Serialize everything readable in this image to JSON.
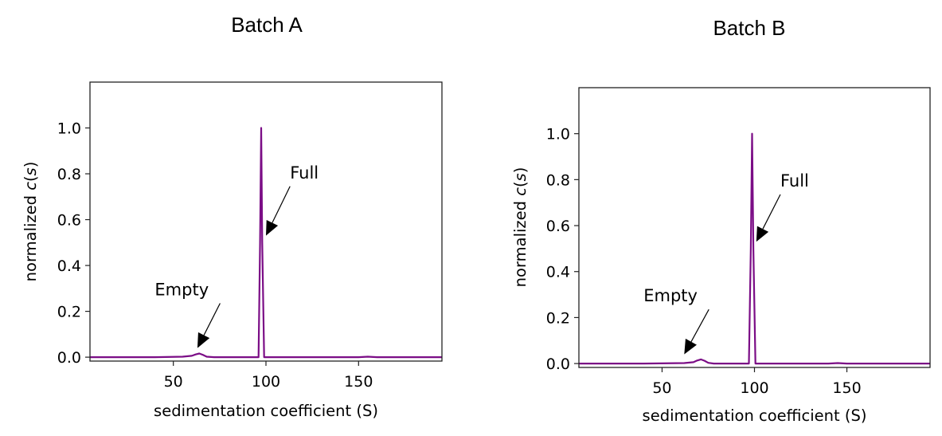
{
  "chart_data": [
    {
      "type": "line",
      "title": "Batch A",
      "xlabel": "sedimentation coefficient (S)",
      "ylabel": "normalized c(s)",
      "xlim": [
        5,
        195
      ],
      "ylim": [
        -0.017,
        1.2
      ],
      "xticks": [
        50,
        100,
        150
      ],
      "yticks": [
        0.0,
        0.2,
        0.4,
        0.6,
        0.8,
        1.0
      ],
      "xtick_labels": [
        "50",
        "100",
        "150"
      ],
      "ytick_labels": [
        "0.0",
        "0.2",
        "0.4",
        "0.6",
        "0.8",
        "1.0"
      ],
      "grid": false,
      "line_color": "#7b0d86",
      "series": [
        {
          "name": "normalized c(s)",
          "x": [
            5,
            40,
            55,
            60,
            62,
            64,
            66,
            68,
            72,
            90,
            96,
            96.8,
            97.4,
            98.0,
            99,
            110,
            150,
            155,
            160,
            195
          ],
          "y": [
            0.0,
            0.0,
            0.002,
            0.006,
            0.012,
            0.016,
            0.01,
            0.002,
            0.0,
            0.0,
            0.0,
            0.5,
            1.0,
            0.5,
            0.0,
            0.0,
            0.0,
            0.002,
            0.0,
            0.0
          ]
        }
      ],
      "annotations": [
        {
          "text": "Full",
          "xy": [
            100,
            0.53
          ],
          "xytext": [
            113,
            0.78
          ]
        },
        {
          "text": "Empty",
          "xy": [
            63,
            0.04
          ],
          "xytext": [
            40,
            0.27
          ]
        }
      ]
    },
    {
      "type": "line",
      "title": "Batch B",
      "xlabel": "sedimentation coefficient (S)",
      "ylabel": "normalized c(s)",
      "xlim": [
        5,
        195
      ],
      "ylim": [
        -0.017,
        1.2
      ],
      "xticks": [
        50,
        100,
        150
      ],
      "yticks": [
        0.0,
        0.2,
        0.4,
        0.6,
        0.8,
        1.0
      ],
      "xtick_labels": [
        "50",
        "100",
        "150"
      ],
      "ytick_labels": [
        "0.0",
        "0.2",
        "0.4",
        "0.6",
        "0.8",
        "1.0"
      ],
      "grid": false,
      "line_color": "#7b0d86",
      "series": [
        {
          "name": "normalized c(s)",
          "x": [
            5,
            40,
            62,
            67,
            69,
            71,
            73,
            75,
            78,
            92,
            97,
            98.0,
            98.7,
            99.4,
            100.5,
            110,
            140,
            145,
            150,
            195
          ],
          "y": [
            0.0,
            0.0,
            0.002,
            0.006,
            0.013,
            0.018,
            0.012,
            0.003,
            0.0,
            0.0,
            0.0,
            0.5,
            1.0,
            0.5,
            0.0,
            0.0,
            0.0,
            0.002,
            0.0,
            0.0
          ]
        }
      ],
      "annotations": [
        {
          "text": "Full",
          "xy": [
            101,
            0.53
          ],
          "xytext": [
            114,
            0.77
          ]
        },
        {
          "text": "Empty",
          "xy": [
            62,
            0.04
          ],
          "xytext": [
            40,
            0.27
          ]
        }
      ]
    }
  ]
}
